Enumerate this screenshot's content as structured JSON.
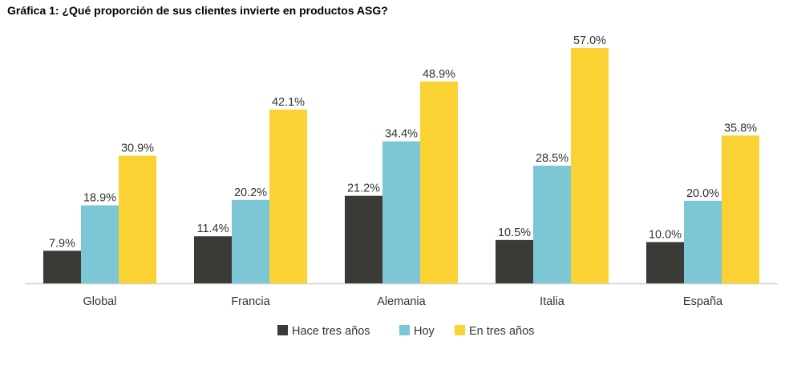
{
  "title": "Gráfica 1: ¿Qué proporción de sus clientes invierte en productos ASG?",
  "chart_data": {
    "type": "bar",
    "title": "Gráfica 1: ¿Qué proporción de sus clientes invierte en productos ASG?",
    "categories": [
      "Global",
      "Francia",
      "Alemania",
      "Italia",
      "España"
    ],
    "series": [
      {
        "name": "Hace tres años",
        "values": [
          7.9,
          11.4,
          21.2,
          10.5,
          10.0
        ],
        "labels": [
          "7.9%",
          "11.4%",
          "21.2%",
          "10.5%",
          "10.0%"
        ],
        "color": "#3b3a36"
      },
      {
        "name": "Hoy",
        "values": [
          18.9,
          20.2,
          34.4,
          28.5,
          20.0
        ],
        "labels": [
          "18.9%",
          "20.2%",
          "34.4%",
          "28.5%",
          "20.0%"
        ],
        "color": "#7cc6d6"
      },
      {
        "name": "En tres años",
        "values": [
          30.9,
          42.1,
          48.9,
          57.0,
          35.8
        ],
        "labels": [
          "30.9%",
          "42.1%",
          "48.9%",
          "57.0%",
          "35.8%"
        ],
        "color": "#fbd233"
      }
    ],
    "ylim": [
      0,
      57.0
    ],
    "grid": false,
    "legend_position": "bottom"
  }
}
